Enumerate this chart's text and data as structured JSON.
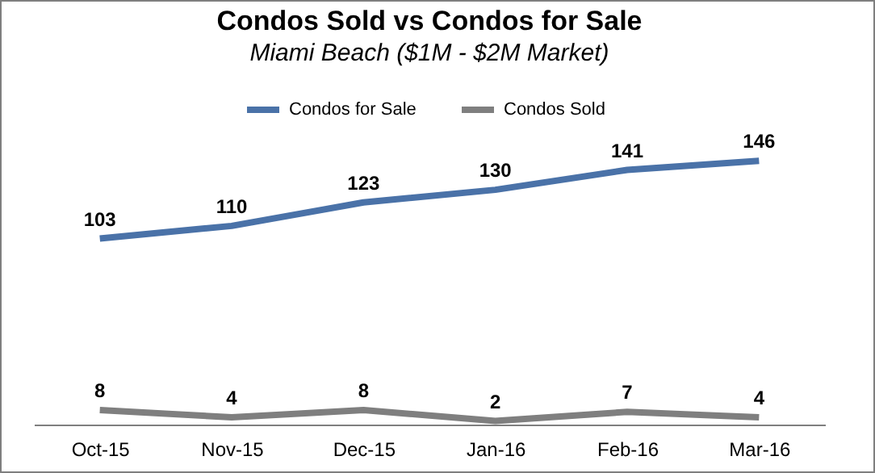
{
  "chart_data": {
    "type": "line",
    "title": "Condos Sold vs Condos for Sale",
    "subtitle": "Miami Beach ($1M - $2M Market)",
    "categories": [
      "Oct-15",
      "Nov-15",
      "Dec-15",
      "Jan-16",
      "Feb-16",
      "Mar-16"
    ],
    "series": [
      {
        "name": "Condos for Sale",
        "color": "#4a72a8",
        "values": [
          103,
          110,
          123,
          130,
          141,
          146
        ]
      },
      {
        "name": "Condos Sold",
        "color": "#7f7f7f",
        "values": [
          8,
          4,
          8,
          2,
          7,
          4
        ]
      }
    ],
    "data_labels": true,
    "legend": "top",
    "grid": false,
    "marker": "none",
    "tick_labels": "x"
  }
}
